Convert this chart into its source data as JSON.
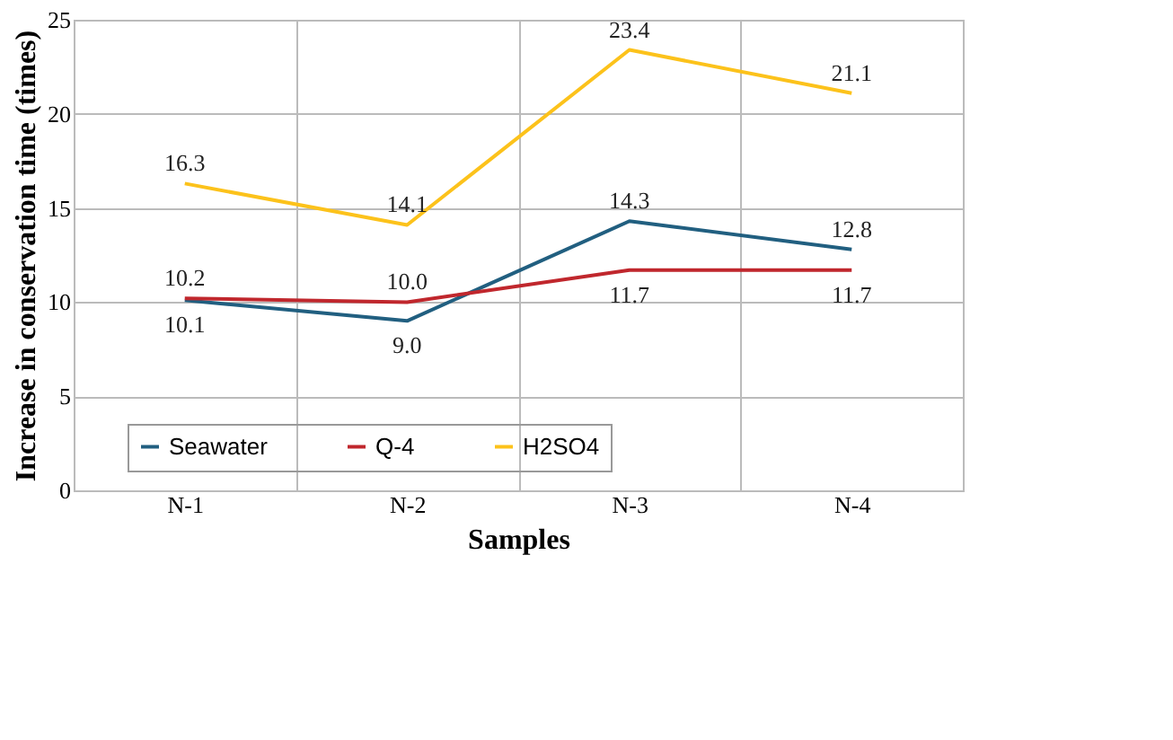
{
  "chart_data": {
    "type": "line",
    "xlabel": "Samples",
    "ylabel": "Increase in conservation time (times)",
    "categories": [
      "N-1",
      "N-2",
      "N-3",
      "N-4"
    ],
    "series": [
      {
        "name": "Seawater",
        "color": "#215f80",
        "values": [
          10.1,
          9.0,
          14.3,
          12.8
        ],
        "value_labels": [
          "10.1",
          "9.0",
          "14.3",
          "12.8"
        ]
      },
      {
        "name": "Q-4",
        "color": "#c0272d",
        "values": [
          10.2,
          10.0,
          11.7,
          11.7
        ],
        "value_labels": [
          "10.2",
          "10.0",
          "11.7",
          "11.7"
        ]
      },
      {
        "name": "H2SO4",
        "color": "#fcc21b",
        "values": [
          16.3,
          14.1,
          23.4,
          21.1
        ],
        "value_labels": [
          "16.3",
          "14.1",
          "23.4",
          "21.1"
        ]
      }
    ],
    "ylim": [
      0,
      25
    ],
    "yticks": [
      0,
      5,
      10,
      15,
      20,
      25
    ],
    "grid": true,
    "legend": "bottom",
    "marker": "none",
    "line_style": "solid"
  }
}
